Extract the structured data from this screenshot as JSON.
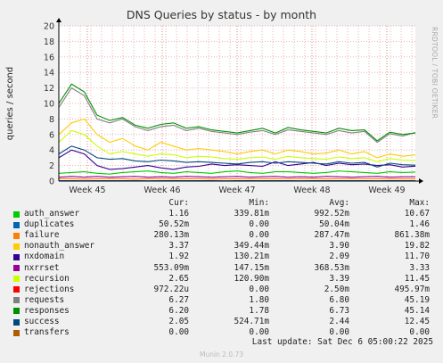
{
  "chart_data": {
    "type": "line",
    "title": "DNS Queries by status - by month",
    "ylabel": "queries / second",
    "ylim": [
      0,
      20
    ],
    "yticks": [
      "0",
      "2",
      "4",
      "6",
      "8",
      "10",
      "12",
      "14",
      "16",
      "18",
      "20"
    ],
    "xticks": [
      "Week 45",
      "Week 46",
      "Week 47",
      "Week 48",
      "Week 49"
    ],
    "grid": true,
    "series": [
      {
        "name": "auth_answer",
        "color": "#00cc00",
        "values": [
          1.0,
          1.1,
          1.2,
          1.0,
          0.9,
          1.1,
          1.2,
          1.3,
          1.1,
          1.0,
          1.2,
          1.1,
          1.0,
          1.2,
          1.3,
          1.1,
          1.0,
          1.2,
          1.2,
          1.1,
          1.0,
          1.1,
          1.3,
          1.2,
          1.1,
          1.0,
          1.2,
          1.1,
          1.16
        ]
      },
      {
        "name": "duplicates",
        "color": "#0066b3",
        "values": [
          0.05,
          0.06,
          0.04,
          0.05,
          0.05,
          0.06,
          0.05,
          0.04,
          0.05,
          0.05,
          0.06,
          0.05,
          0.05,
          0.04,
          0.05,
          0.05,
          0.06,
          0.05,
          0.05,
          0.04,
          0.05,
          0.05,
          0.06,
          0.05,
          0.05,
          0.04,
          0.05,
          0.05,
          0.05
        ]
      },
      {
        "name": "failure",
        "color": "#ff8000",
        "values": [
          0.3,
          0.3,
          0.25,
          0.3,
          0.3,
          0.3,
          0.25,
          0.3,
          0.3,
          0.28,
          0.3,
          0.3,
          0.27,
          0.3,
          0.3,
          0.28,
          0.3,
          0.3,
          0.29,
          0.3,
          0.3,
          0.28,
          0.3,
          0.3,
          0.29,
          0.3,
          0.28,
          0.3,
          0.28
        ]
      },
      {
        "name": "nonauth_answer",
        "color": "#ffcc00",
        "values": [
          6.0,
          7.5,
          8.0,
          6.0,
          5.0,
          5.5,
          4.5,
          4.0,
          5.0,
          4.5,
          4.0,
          4.2,
          4.0,
          3.8,
          3.5,
          3.8,
          4.0,
          3.5,
          4.0,
          3.8,
          3.5,
          3.6,
          4.0,
          3.5,
          3.8,
          3.0,
          3.5,
          3.2,
          3.37
        ]
      },
      {
        "name": "nxdomain",
        "color": "#330099",
        "values": [
          3.0,
          4.0,
          3.5,
          2.0,
          1.5,
          1.6,
          1.8,
          2.0,
          1.7,
          1.5,
          1.8,
          1.9,
          2.2,
          2.0,
          2.1,
          2.0,
          1.9,
          2.5,
          2.0,
          2.2,
          2.4,
          2.0,
          2.3,
          2.1,
          2.2,
          2.0,
          2.1,
          1.8,
          1.92
        ]
      },
      {
        "name": "nxrrset",
        "color": "#990099",
        "values": [
          0.5,
          0.6,
          0.5,
          0.6,
          0.5,
          0.55,
          0.6,
          0.5,
          0.55,
          0.5,
          0.6,
          0.55,
          0.5,
          0.55,
          0.6,
          0.5,
          0.55,
          0.6,
          0.5,
          0.55,
          0.5,
          0.6,
          0.55,
          0.5,
          0.55,
          0.6,
          0.5,
          0.55,
          0.55
        ]
      },
      {
        "name": "recursion",
        "color": "#ccff00",
        "values": [
          5.0,
          6.5,
          6.0,
          4.5,
          3.5,
          3.8,
          3.5,
          3.2,
          3.5,
          3.4,
          3.0,
          3.2,
          3.1,
          2.9,
          2.8,
          3.0,
          3.1,
          2.8,
          3.2,
          3.0,
          2.9,
          2.8,
          3.1,
          2.9,
          3.0,
          2.5,
          2.9,
          2.7,
          2.65
        ]
      },
      {
        "name": "rejections",
        "color": "#ff0000",
        "values": [
          0.0,
          0.0,
          0.0,
          0.0,
          0.0,
          0.0,
          0.0,
          0.0,
          0.0,
          0.0,
          0.0,
          0.0,
          0.0,
          0.0,
          0.0,
          0.0,
          0.0,
          0.0,
          0.0,
          0.0,
          0.0,
          0.0,
          0.0,
          0.0,
          0.0,
          0.0,
          0.0,
          0.0,
          0.0
        ]
      },
      {
        "name": "requests",
        "color": "#808080",
        "values": [
          9.5,
          12.0,
          11.0,
          8.0,
          7.5,
          8.0,
          7.0,
          6.5,
          7.0,
          7.2,
          6.5,
          6.8,
          6.4,
          6.2,
          6.0,
          6.3,
          6.5,
          6.0,
          6.6,
          6.4,
          6.2,
          6.0,
          6.5,
          6.2,
          6.4,
          5.0,
          6.1,
          5.8,
          6.27
        ]
      },
      {
        "name": "responses",
        "color": "#008f00",
        "values": [
          10.0,
          12.5,
          11.5,
          8.5,
          7.8,
          8.2,
          7.2,
          6.8,
          7.3,
          7.5,
          6.8,
          7.0,
          6.6,
          6.4,
          6.2,
          6.5,
          6.8,
          6.2,
          6.9,
          6.6,
          6.4,
          6.2,
          6.8,
          6.5,
          6.6,
          5.2,
          6.3,
          6.0,
          6.2
        ]
      },
      {
        "name": "success",
        "color": "#00487d",
        "values": [
          3.5,
          4.5,
          4.0,
          3.0,
          2.8,
          2.9,
          2.6,
          2.5,
          2.7,
          2.6,
          2.4,
          2.5,
          2.4,
          2.3,
          2.2,
          2.4,
          2.5,
          2.3,
          2.5,
          2.4,
          2.3,
          2.2,
          2.5,
          2.3,
          2.4,
          1.8,
          2.3,
          2.1,
          2.05
        ]
      },
      {
        "name": "transfers",
        "color": "#b35a00",
        "values": [
          0.0,
          0.0,
          0.0,
          0.0,
          0.0,
          0.0,
          0.0,
          0.0,
          0.0,
          0.0,
          0.0,
          0.0,
          0.0,
          0.0,
          0.0,
          0.0,
          0.0,
          0.0,
          0.0,
          0.0,
          0.0,
          0.0,
          0.0,
          0.0,
          0.0,
          0.0,
          0.0,
          0.0,
          0.0
        ]
      }
    ]
  },
  "side_label": "RRDTOOL / TOBI OETIKER",
  "legend_headers": {
    "cur": "Cur:",
    "min": "Min:",
    "avg": "Avg:",
    "max": "Max:"
  },
  "legend": [
    {
      "name": "auth_answer",
      "color": "#00cc00",
      "cur": "1.16",
      "min": "339.81m",
      "avg": "992.52m",
      "max": "10.67"
    },
    {
      "name": "duplicates",
      "color": "#0066b3",
      "cur": "50.52m",
      "min": "0.00",
      "avg": "50.04m",
      "max": "1.46"
    },
    {
      "name": "failure",
      "color": "#ff8000",
      "cur": "280.13m",
      "min": "0.00",
      "avg": "287.47m",
      "max": "861.38m"
    },
    {
      "name": "nonauth_answer",
      "color": "#ffcc00",
      "cur": "3.37",
      "min": "349.44m",
      "avg": "3.90",
      "max": "19.82"
    },
    {
      "name": "nxdomain",
      "color": "#330099",
      "cur": "1.92",
      "min": "130.21m",
      "avg": "2.09",
      "max": "11.70"
    },
    {
      "name": "nxrrset",
      "color": "#990099",
      "cur": "553.09m",
      "min": "147.15m",
      "avg": "368.53m",
      "max": "3.33"
    },
    {
      "name": "recursion",
      "color": "#ccff00",
      "cur": "2.65",
      "min": "120.90m",
      "avg": "3.39",
      "max": "11.45"
    },
    {
      "name": "rejections",
      "color": "#ff0000",
      "cur": "972.22u",
      "min": "0.00",
      "avg": "2.50m",
      "max": "495.97m"
    },
    {
      "name": "requests",
      "color": "#808080",
      "cur": "6.27",
      "min": "1.80",
      "avg": "6.80",
      "max": "45.19"
    },
    {
      "name": "responses",
      "color": "#008f00",
      "cur": "6.20",
      "min": "1.78",
      "avg": "6.73",
      "max": "45.14"
    },
    {
      "name": "success",
      "color": "#00487d",
      "cur": "2.05",
      "min": "524.71m",
      "avg": "2.44",
      "max": "12.45"
    },
    {
      "name": "transfers",
      "color": "#b35a00",
      "cur": "0.00",
      "min": "0.00",
      "avg": "0.00",
      "max": "0.00"
    }
  ],
  "last_update": "Last update: Sat Dec  6 05:00:22 2025",
  "footer": "Munin 2.0.73"
}
